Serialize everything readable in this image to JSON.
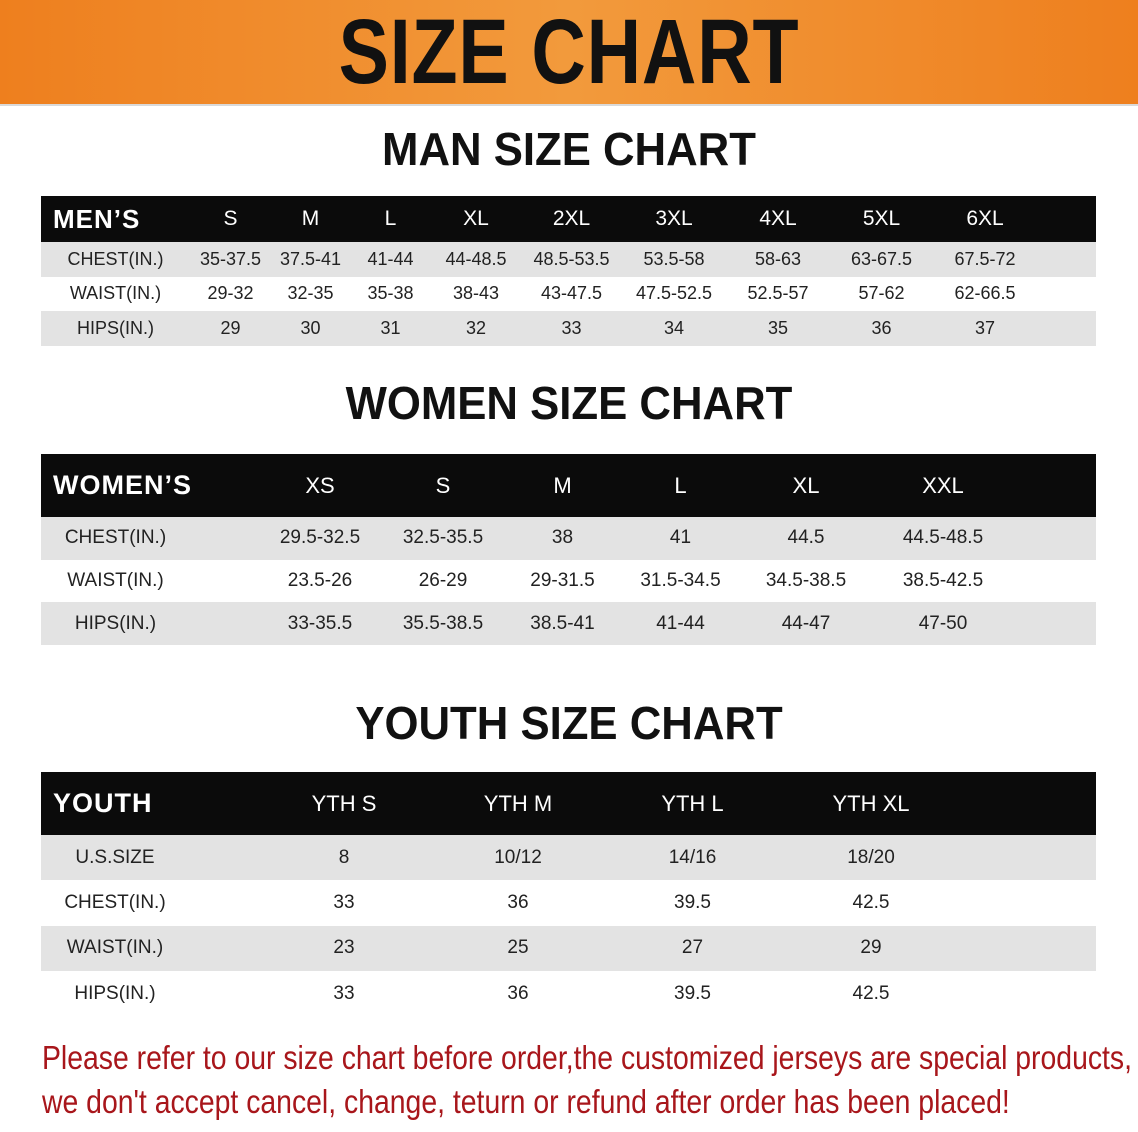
{
  "banner": {
    "title": "SIZE CHART",
    "color": "#ee7f1e"
  },
  "men": {
    "title": "MAN SIZE CHART",
    "header_label": "MEN’S",
    "sizes": [
      "S",
      "M",
      "L",
      "XL",
      "2XL",
      "3XL",
      "4XL",
      "5XL",
      "6XL"
    ],
    "rows": [
      {
        "label": "CHEST(IN.)",
        "values": [
          "35-37.5",
          "37.5-41",
          "41-44",
          "44-48.5",
          "48.5-53.5",
          "53.5-58",
          "58-63",
          "63-67.5",
          "67.5-72"
        ]
      },
      {
        "label": "WAIST(IN.)",
        "values": [
          "29-32",
          "32-35",
          "35-38",
          "38-43",
          "43-47.5",
          "47.5-52.5",
          "52.5-57",
          "57-62",
          "62-66.5"
        ]
      },
      {
        "label": "HIPS(IN.)",
        "values": [
          "29",
          "30",
          "31",
          "32",
          "33",
          "34",
          "35",
          "36",
          "37"
        ]
      }
    ]
  },
  "women": {
    "title": "WOMEN SIZE CHART",
    "header_label": "WOMEN’S",
    "sizes": [
      "XS",
      "S",
      "M",
      "L",
      "XL",
      "XXL"
    ],
    "rows": [
      {
        "label": "CHEST(IN.)",
        "values": [
          "29.5-32.5",
          "32.5-35.5",
          "38",
          "41",
          "44.5",
          "44.5-48.5"
        ]
      },
      {
        "label": "WAIST(IN.)",
        "values": [
          "23.5-26",
          "26-29",
          "29-31.5",
          "31.5-34.5",
          "34.5-38.5",
          "38.5-42.5"
        ]
      },
      {
        "label": "HIPS(IN.)",
        "values": [
          "33-35.5",
          "35.5-38.5",
          "38.5-41",
          "41-44",
          "44-47",
          "47-50"
        ]
      }
    ]
  },
  "youth": {
    "title": "YOUTH SIZE CHART",
    "header_label": "YOUTH",
    "sizes": [
      "YTH S",
      "YTH M",
      "YTH L",
      "YTH XL"
    ],
    "rows": [
      {
        "label": "U.S.SIZE",
        "values": [
          "8",
          "10/12",
          "14/16",
          "18/20"
        ]
      },
      {
        "label": "CHEST(IN.)",
        "values": [
          "33",
          "36",
          "39.5",
          "42.5"
        ]
      },
      {
        "label": "WAIST(IN.)",
        "values": [
          "23",
          "25",
          "27",
          "29"
        ]
      },
      {
        "label": "HIPS(IN.)",
        "values": [
          "33",
          "36",
          "39.5",
          "42.5"
        ]
      }
    ]
  },
  "footer": {
    "line1": "Please refer to our size chart before order,the customized jerseys are special products,",
    "line2": "we don't accept cancel, change, teturn or refund after order has been placed!",
    "color": "#a8161b"
  }
}
